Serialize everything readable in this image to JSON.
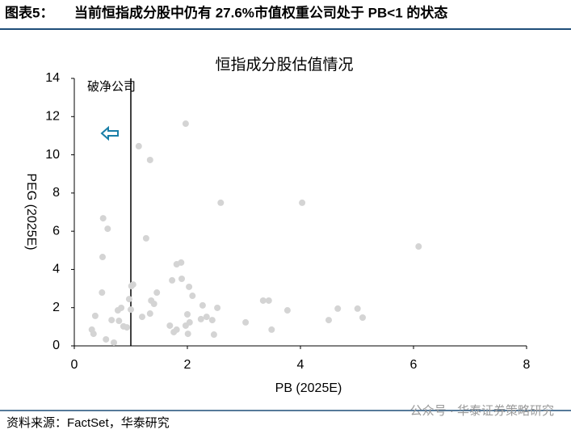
{
  "header": {
    "label": "图表5：",
    "title": "当前恒指成分股中仍有 27.6%市值权重公司处于 PB<1 的状态"
  },
  "chart_data": {
    "type": "scatter",
    "title": "恒指成分股估值情况",
    "x_label": "PB (2025E)",
    "y_label": "PEG (2025E)",
    "annotation": "破净公司",
    "vline": 1,
    "color": "#d4d4d4",
    "x": [
      1.14,
      1.34,
      1.97,
      2.59,
      4.03,
      6.09,
      0.51,
      0.59,
      0.5,
      1.27,
      0.49,
      0.37,
      0.31,
      0.34,
      0.56,
      0.7,
      0.66,
      0.79,
      0.77,
      0.83,
      0.87,
      0.93,
      0.97,
      1.01,
      1.04,
      1.0,
      1.2,
      1.36,
      1.41,
      1.34,
      1.46,
      1.69,
      1.73,
      1.76,
      1.81,
      1.81,
      1.89,
      1.9,
      2.0,
      1.97,
      2.04,
      2.01,
      2.03,
      2.09,
      2.27,
      2.24,
      2.34,
      2.44,
      2.53,
      2.47,
      3.03,
      3.34,
      3.44,
      3.49,
      3.77,
      4.5,
      4.66,
      5.01,
      5.1
    ],
    "values": [
      10.45,
      9.73,
      11.63,
      7.49,
      7.49,
      5.2,
      6.68,
      6.13,
      4.65,
      5.63,
      2.79,
      1.57,
      0.85,
      0.63,
      0.34,
      0.17,
      1.35,
      1.31,
      1.86,
      1.99,
      1.02,
      0.97,
      2.45,
      3.13,
      3.21,
      1.9,
      1.52,
      2.37,
      2.2,
      1.69,
      2.79,
      1.06,
      3.43,
      0.72,
      0.85,
      4.27,
      4.36,
      3.51,
      1.65,
      1.06,
      1.23,
      0.63,
      3.09,
      2.62,
      2.12,
      1.4,
      1.52,
      1.35,
      1.99,
      0.59,
      1.23,
      2.37,
      2.37,
      0.85,
      1.86,
      1.35,
      1.95,
      1.95,
      1.48
    ],
    "xlim": [
      0,
      8
    ],
    "ylim": [
      0,
      14
    ],
    "xticks": [
      0,
      2,
      4,
      6,
      8
    ],
    "yticks": [
      0,
      2,
      4,
      6,
      8,
      10,
      12,
      14
    ]
  },
  "footer": {
    "source": "资料来源：FactSet，华泰研究",
    "watermark": "公众号 · 华泰证券策略研究"
  }
}
